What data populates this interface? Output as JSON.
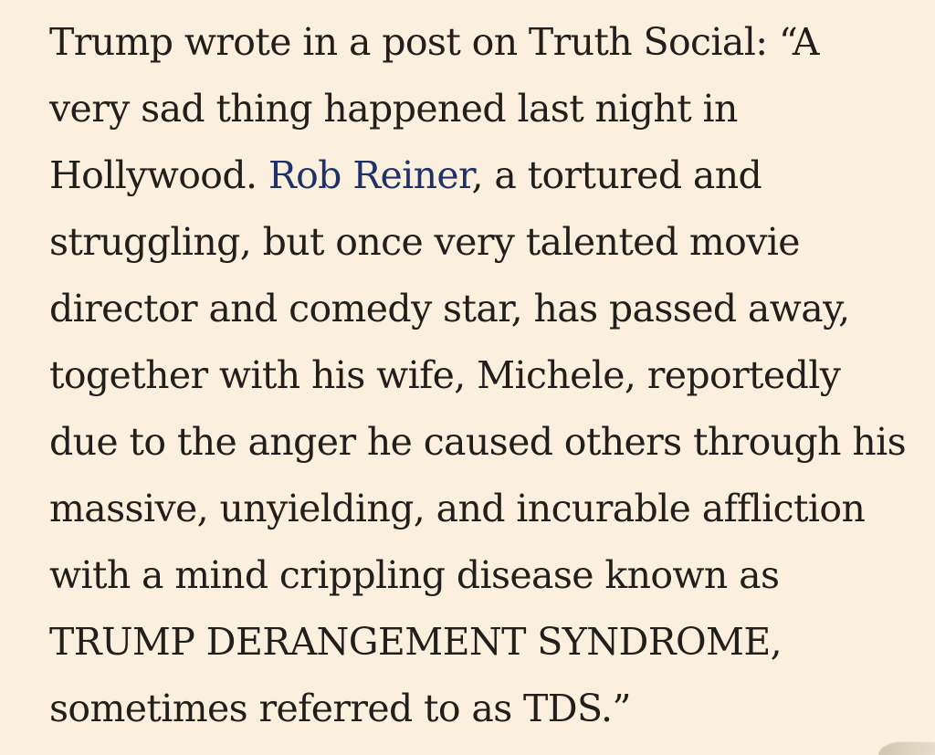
{
  "page": {
    "background_color": "#fbf0dd",
    "text_color": "#221e1b",
    "link_color": "#1f3168",
    "corner_artifact_color": "#d9cfba"
  },
  "article": {
    "lines": [
      {
        "text": "Trump wrote in a post on Truth Social: “A"
      },
      {
        "text": "very sad thing happened last night in"
      },
      {
        "pre": "Hollywood. ",
        "link": "Rob Reiner",
        "post": ", a tortured and"
      },
      {
        "text": "struggling, but once very talented movie"
      },
      {
        "text": "director and comedy star, has passed away,"
      },
      {
        "text": "together with his wife, Michele, reportedly"
      },
      {
        "text": "due to the anger he caused others through his"
      },
      {
        "text": "massive, unyielding, and incurable affliction"
      },
      {
        "text": "with a mind crippling disease known as"
      },
      {
        "text": "TRUMP DERANGEMENT SYNDROME,"
      },
      {
        "text": "sometimes referred to as TDS.”"
      }
    ]
  }
}
